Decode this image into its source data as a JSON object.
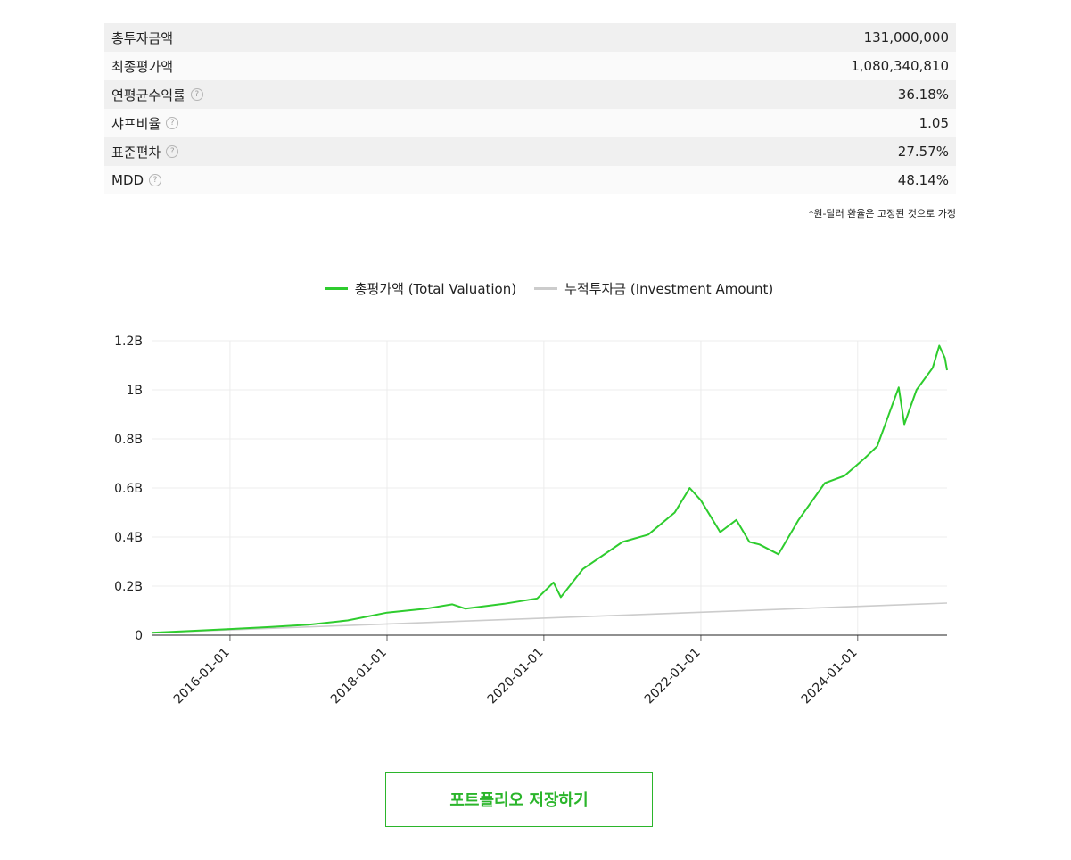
{
  "stats": [
    {
      "label": "총투자금액",
      "value": "131,000,000",
      "help": false
    },
    {
      "label": "최종평가액",
      "value": "1,080,340,810",
      "help": false
    },
    {
      "label": "연평균수익률",
      "value": "36.18%",
      "help": true
    },
    {
      "label": "샤프비율",
      "value": "1.05",
      "help": true
    },
    {
      "label": "표준편차",
      "value": "27.57%",
      "help": true
    },
    {
      "label": "MDD",
      "value": "48.14%",
      "help": true
    }
  ],
  "help_glyph": "?",
  "note": "*원-달러 환율은 고정된 것으로 가정",
  "colors": {
    "valuation": "#2ecc2e",
    "investment": "#cccccc",
    "button": "#2bb52b"
  },
  "chart_data": {
    "type": "line",
    "legend_position": "top-center",
    "grid": true,
    "x_tick_labels": [
      "2016-01-01",
      "2018-01-01",
      "2020-01-01",
      "2022-01-01",
      "2024-01-01"
    ],
    "y_tick_labels": [
      "0",
      "0.2B",
      "0.4B",
      "0.6B",
      "0.8B",
      "1B",
      "1.2B"
    ],
    "xlim": [
      "2015-01-01",
      "2025-02-20"
    ],
    "ylim": [
      0,
      1200000000
    ],
    "series": [
      {
        "name": "총평가액 (Total Valuation)",
        "color": "#2ecc2e",
        "x": [
          "2015-01-01",
          "2015-07-01",
          "2016-01-01",
          "2016-07-01",
          "2017-01-01",
          "2017-07-01",
          "2018-01-01",
          "2018-07-01",
          "2018-11-01",
          "2019-01-01",
          "2019-07-01",
          "2019-12-01",
          "2020-02-15",
          "2020-03-20",
          "2020-07-01",
          "2021-01-01",
          "2021-05-01",
          "2021-09-01",
          "2021-11-10",
          "2022-01-01",
          "2022-04-01",
          "2022-06-15",
          "2022-08-15",
          "2022-10-01",
          "2022-12-28",
          "2023-04-01",
          "2023-08-01",
          "2023-11-01",
          "2024-02-01",
          "2024-04-01",
          "2024-07-10",
          "2024-08-05",
          "2024-10-01",
          "2024-12-15",
          "2025-01-15",
          "2025-02-10",
          "2025-02-20"
        ],
        "y": [
          10000000,
          17000000,
          25000000,
          33000000,
          43000000,
          60000000,
          92000000,
          108000000,
          126000000,
          108000000,
          128000000,
          150000000,
          215000000,
          155000000,
          270000000,
          380000000,
          410000000,
          500000000,
          600000000,
          550000000,
          420000000,
          470000000,
          380000000,
          370000000,
          330000000,
          470000000,
          620000000,
          650000000,
          720000000,
          770000000,
          1010000000,
          860000000,
          1000000000,
          1090000000,
          1180000000,
          1130000000,
          1080000000
        ]
      },
      {
        "name": "누적투자금 (Investment Amount)",
        "color": "#cccccc",
        "x": [
          "2015-01-01",
          "2025-02-20"
        ],
        "y": [
          10000000,
          131000000
        ]
      }
    ]
  },
  "save_button": "포트폴리오 저장하기"
}
